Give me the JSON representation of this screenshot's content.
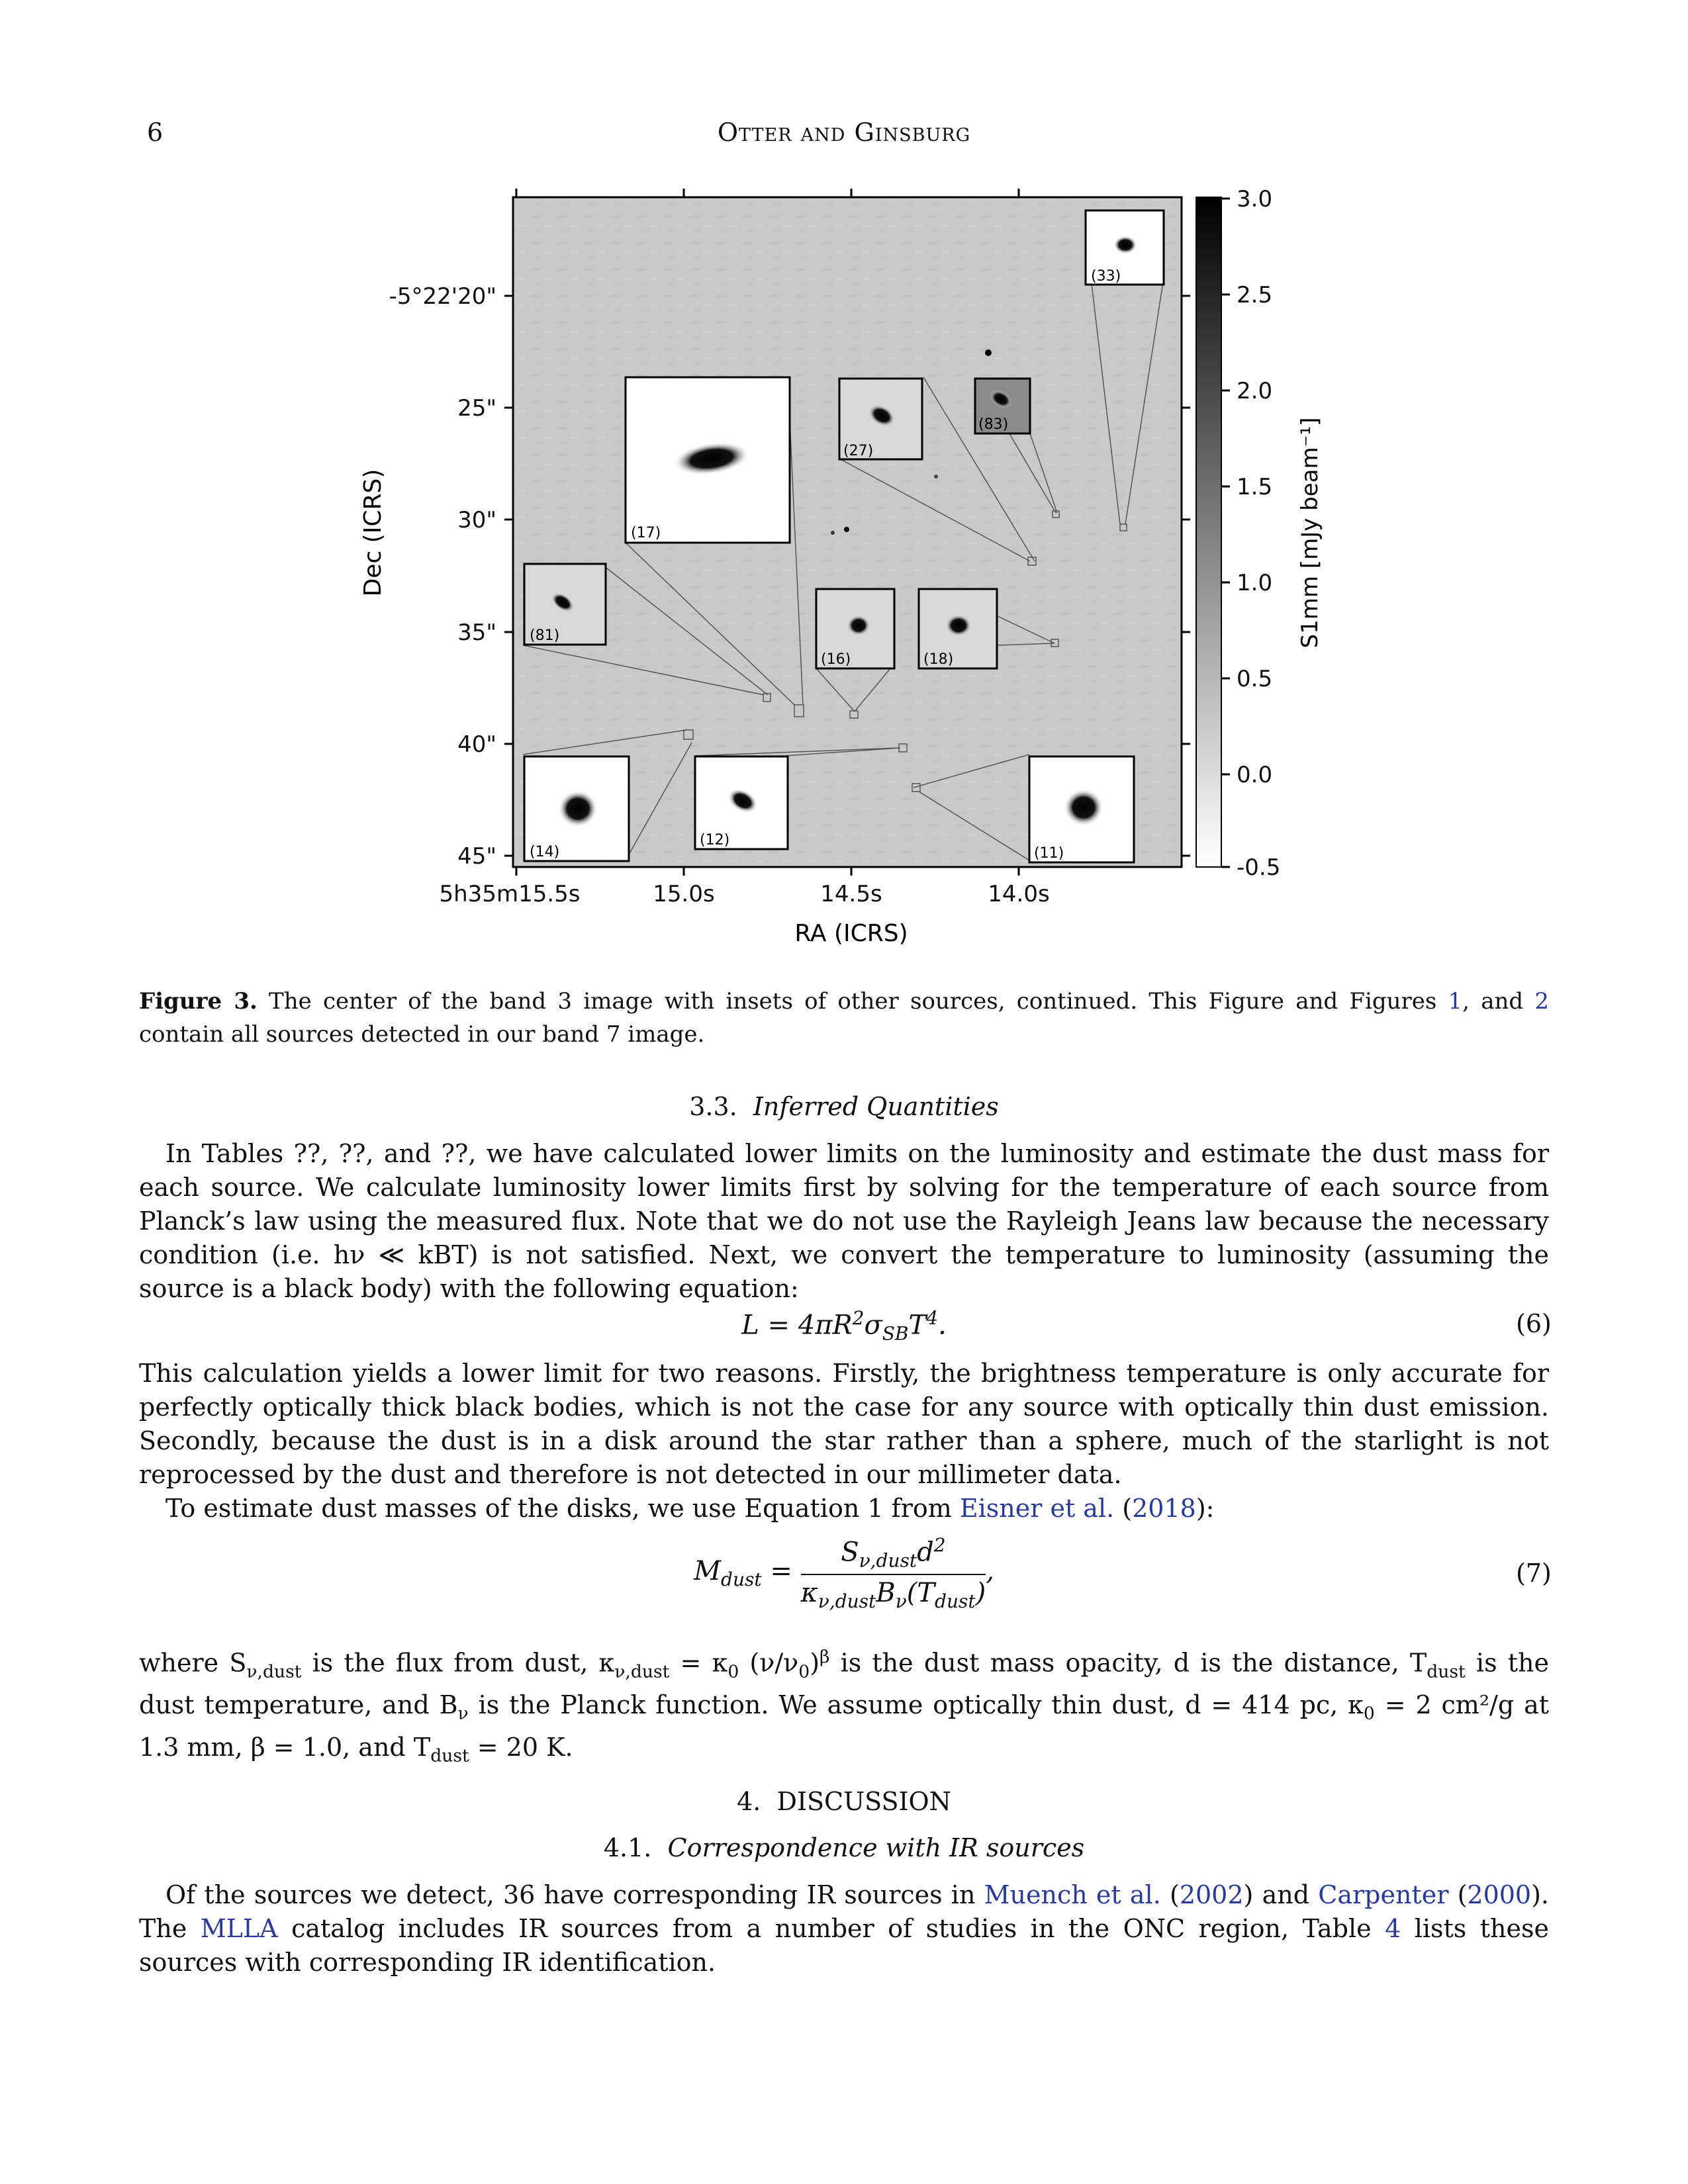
{
  "header": {
    "page_number": "6",
    "running_head": "Otter and Ginsburg"
  },
  "figure": {
    "colorbar": {
      "label": "S1mm [mJy beam⁻¹]",
      "ticks": [
        "3.0",
        "2.5",
        "2.0",
        "1.5",
        "1.0",
        "0.5",
        "0.0",
        "-0.5"
      ]
    },
    "dec_axis": {
      "label": "Dec (ICRS)",
      "ticks": [
        "-5°22'20\"",
        "25\"",
        "30\"",
        "35\"",
        "40\"",
        "45\""
      ]
    },
    "ra_axis": {
      "label": "RA (ICRS)",
      "ticks": [
        "5h35m15.5s",
        "15.0s",
        "14.5s",
        "14.0s"
      ]
    },
    "insets": [
      "(33)",
      "(17)",
      "(27)",
      "(83)",
      "(81)",
      "(16)",
      "(18)",
      "(14)",
      "(12)",
      "(11)"
    ]
  },
  "caption": {
    "label": "Figure 3.",
    "text_a": " The center of the band 3 image with insets of other sources, continued. This Figure and Figures ",
    "ref1": "1",
    "text_b": ", and ",
    "ref2": "2",
    "text_c": " contain all sources detected in our band 7 image."
  },
  "section_3_3": {
    "number": "3.3.",
    "title": "Inferred Quantities"
  },
  "para1": "In Tables ??, ??, and ??, we have calculated lower limits on the luminosity and estimate the dust mass for each source. We calculate luminosity lower limits first by solving for the temperature of each source from Planck’s law using the measured flux. Note that we do not use the Rayleigh Jeans law because the necessary condition (i.e. hν ≪ kBT) is not satisfied. Next, we convert the temperature to luminosity (assuming the source is a black body) with the following equation:",
  "eq6": {
    "lhs": "L = 4πR",
    "rest": "σ",
    "sub": "SB",
    "t": "T",
    "num": "(6)"
  },
  "para2": "This calculation yields a lower limit for two reasons. Firstly, the brightness temperature is only accurate for perfectly optically thick black bodies, which is not the case for any source with optically thin dust emission. Secondly, because the dust is in a disk around the star rather than a sphere, much of the starlight is not reprocessed by the dust and therefore is not detected in our millimeter data.",
  "para3": {
    "text": "To estimate dust masses of the disks, we use Equation 1 from ",
    "cite": "Eisner et al.",
    "year": "2018",
    "end": "):"
  },
  "eq7": {
    "num": "(7)"
  },
  "para4_a": "where S",
  "para4_b": " is the flux from dust, κ",
  "para4_c": " is the dust mass opacity, d is the distance, T",
  "para4_d": " is the dust temperature, and B",
  "para4_e": " is the Planck function. We assume optically thin dust, d = 414 pc, κ",
  "para4_f": " = 2 cm²/g at 1.3 mm, β = 1.0, and T",
  "para4_g": " = 20 K.",
  "section_4": {
    "number": "4.",
    "title": "DISCUSSION"
  },
  "section_4_1": {
    "number": "4.1.",
    "title": "Correspondence with IR sources"
  },
  "para5": {
    "a": "Of the sources we detect, 36 have corresponding IR sources in ",
    "cite1": "Muench et al.",
    "y1": "2002",
    "b": ") and ",
    "cite2": "Carpenter",
    "y2": "2000",
    "c": "). The ",
    "cite3": "MLLA",
    "d": " catalog includes IR sources from a number of studies in the ONC region, Table ",
    "ref": "4",
    "e": " lists these sources with corresponding IR identification."
  }
}
